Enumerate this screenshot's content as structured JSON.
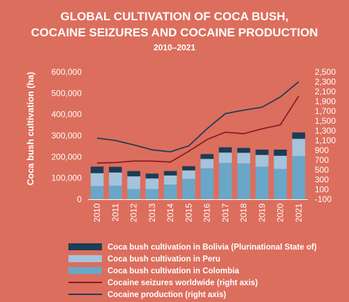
{
  "chart_data": {
    "type": "bar",
    "title_line1": "GLOBAL CULTIVATION OF COCA BUSH,",
    "title_line2": "COCAINE SEIZURES AND COCAINE PRODUCTION",
    "subtitle": "2010–2021",
    "ylabel": "Coca bush cultivation (ha)",
    "categories": [
      "2010",
      "2011",
      "2012",
      "2013",
      "2014",
      "2015",
      "2016",
      "2017",
      "2018",
      "2019",
      "2020",
      "2021"
    ],
    "ylim": [
      0,
      600000
    ],
    "y_ticks": [
      "0",
      "100,000",
      "200,000",
      "300,000",
      "400,000",
      "500,000",
      "600,000"
    ],
    "y2lim": [
      -100,
      2500
    ],
    "y2_ticks": [
      "-100",
      "100",
      "300",
      "500",
      "700",
      "900",
      "1,100",
      "1,300",
      "1,500",
      "1,700",
      "1,900",
      "2,100",
      "2,300",
      "2,500"
    ],
    "series": [
      {
        "name": "Coca bush cultivation in Colombia",
        "type": "bar",
        "axis": "left",
        "color": "#6aa6c8",
        "values": [
          62000,
          64000,
          48000,
          48000,
          69000,
          96000,
          146000,
          171000,
          169000,
          154000,
          143000,
          204000
        ]
      },
      {
        "name": "Coca bush cultivation in Peru",
        "type": "bar",
        "axis": "left",
        "color": "#a4c4db",
        "values": [
          61000,
          62000,
          60000,
          50000,
          43000,
          40000,
          44000,
          49000,
          50000,
          55000,
          62000,
          81000
        ]
      },
      {
        "name": "Coca bush cultivation in Bolivia (Plurinational State of)",
        "type": "bar",
        "axis": "left",
        "color": "#1b3d55",
        "values": [
          31000,
          27000,
          25000,
          23000,
          21000,
          20000,
          23000,
          25000,
          23000,
          25000,
          29000,
          30000
        ]
      },
      {
        "name": "Cocaine seizures worldwide (right axis)",
        "type": "line",
        "axis": "right",
        "color": "#8b1a2b",
        "values": [
          640,
          650,
          680,
          680,
          660,
          880,
          1120,
          1270,
          1240,
          1340,
          1420,
          2010
        ]
      },
      {
        "name": "Cocaine production (right axis)",
        "type": "line",
        "axis": "right",
        "color": "#243b57",
        "values": [
          1150,
          1100,
          1010,
          910,
          870,
          990,
          1340,
          1650,
          1720,
          1780,
          1990,
          2300
        ]
      }
    ],
    "legend_order": [
      "Coca bush cultivation in Bolivia (Plurinational State of)",
      "Coca bush cultivation in Peru",
      "Coca bush cultivation in Colombia",
      "Cocaine seizures worldwide (right axis)",
      "Cocaine production (right axis)"
    ],
    "grid": false,
    "legend_position": "bottom",
    "background": "#dc6e5d"
  }
}
